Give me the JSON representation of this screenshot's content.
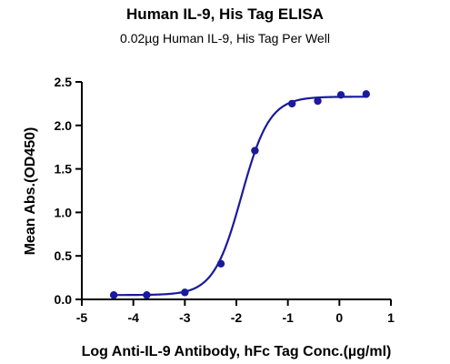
{
  "chart_data": {
    "type": "scatter",
    "title": "Human IL-9, His Tag ELISA",
    "subtitle": "0.02µg Human IL-9, His Tag Per Well",
    "xlabel": "Log Anti-IL-9 Antibody, hFc Tag Conc.(µg/ml)",
    "ylabel": "Mean Abs.(OD450)",
    "xlim": [
      -5,
      1
    ],
    "ylim": [
      0,
      2.5
    ],
    "x_ticks": [
      "-5",
      "-4",
      "-3",
      "-2",
      "-1",
      "0",
      "1"
    ],
    "y_ticks": [
      "0.0",
      "0.5",
      "1.0",
      "1.5",
      "2.0",
      "2.5"
    ],
    "series": [
      {
        "points": [
          {
            "x": -4.38,
            "y": 0.05
          },
          {
            "x": -3.74,
            "y": 0.05
          },
          {
            "x": -3.0,
            "y": 0.08
          },
          {
            "x": -2.3,
            "y": 0.41
          },
          {
            "x": -1.64,
            "y": 1.71
          },
          {
            "x": -0.92,
            "y": 2.25
          },
          {
            "x": -0.42,
            "y": 2.28
          },
          {
            "x": 0.03,
            "y": 2.35
          },
          {
            "x": 0.52,
            "y": 2.36
          }
        ]
      }
    ],
    "fit_curve": {
      "model": "4PL",
      "bottom": 0.05,
      "top": 2.33,
      "logEC50": -1.9,
      "hill_slope": 1.6,
      "x_range": [
        -4.4,
        0.55
      ]
    },
    "colors": {
      "series": "#1a1a9c",
      "axes": "#000000"
    },
    "grid": false
  }
}
